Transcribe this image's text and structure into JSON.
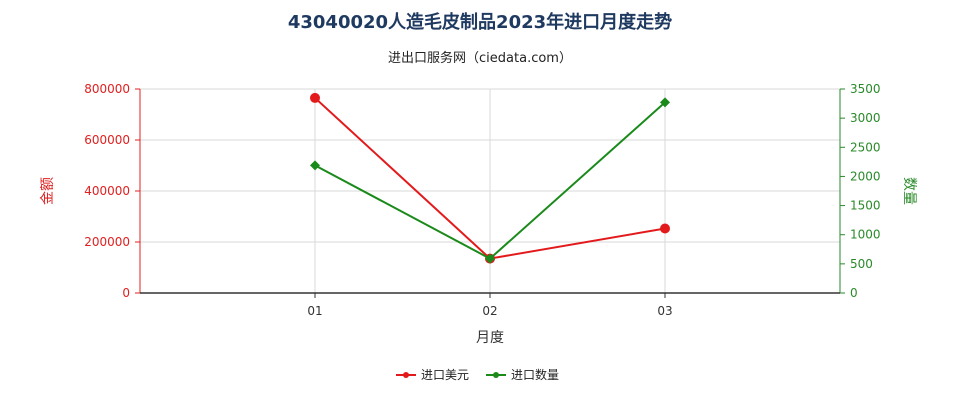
{
  "chart_data": {
    "type": "line",
    "title": "43040020人造毛皮制品2023年进口月度走势",
    "subtitle": "进出口服务网（ciedata.com）",
    "xlabel": "月度",
    "ylabel_left": "金额",
    "ylabel_right": "数量",
    "categories": [
      "01",
      "02",
      "03"
    ],
    "ylim_left": [
      0,
      800000
    ],
    "yticks_left": [
      "0",
      "200000",
      "400000",
      "600000",
      "800000"
    ],
    "ylim_right": [
      0,
      3500
    ],
    "yticks_right": [
      "0",
      "500",
      "1000",
      "1500",
      "2000",
      "2500",
      "3000",
      "3500"
    ],
    "grid": true,
    "legend_position": "bottom",
    "series": [
      {
        "name": "进口美元",
        "axis": "left",
        "color": "#e31a1c",
        "marker": "circle",
        "values": [
          765000,
          135000,
          253000
        ]
      },
      {
        "name": "进口数量",
        "axis": "right",
        "color": "#1a8a1a",
        "marker": "diamond",
        "values": [
          2190,
          590,
          3270
        ]
      }
    ]
  }
}
